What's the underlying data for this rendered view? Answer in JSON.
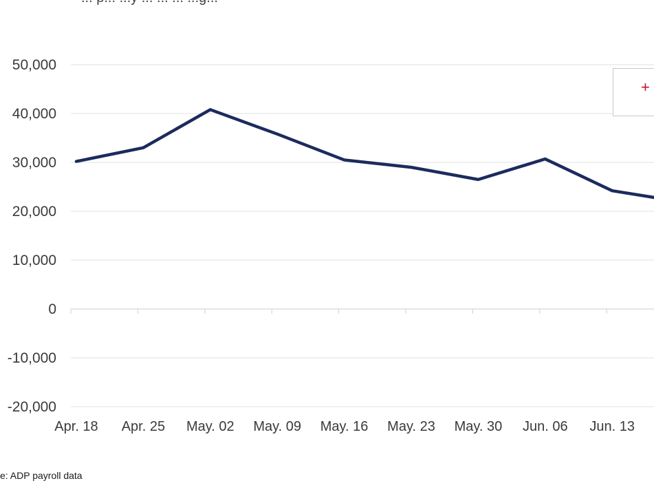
{
  "header": {
    "subtitle": "... p... ...y ... ... ... ...g..."
  },
  "legend": {
    "marker": "+"
  },
  "footer": {
    "source": "e: ADP payroll data"
  },
  "colors": {
    "series": "#1c2b5e",
    "grid": "#e2e2e2",
    "axis": "#cfcfcf",
    "marker": "#c8102e"
  },
  "chart_data": {
    "type": "line",
    "title": "",
    "xlabel": "",
    "ylabel": "",
    "ylim": [
      -20000,
      50000
    ],
    "grid": true,
    "y_ticks": [
      "50,000",
      "40,000",
      "30,000",
      "20,000",
      "10,000",
      "0",
      "-10,000",
      "-20,000"
    ],
    "y_tick_values": [
      50000,
      40000,
      30000,
      20000,
      10000,
      0,
      -10000,
      -20000
    ],
    "categories": [
      "Apr. 18",
      "Apr. 25",
      "May. 02",
      "May. 09",
      "May. 16",
      "May. 23",
      "May. 30",
      "Jun. 06",
      "Jun. 13",
      ""
    ],
    "series": [
      {
        "name": "",
        "values": [
          30200,
          33000,
          40800,
          35800,
          30500,
          29000,
          26500,
          30700,
          24200,
          22000
        ]
      }
    ]
  }
}
